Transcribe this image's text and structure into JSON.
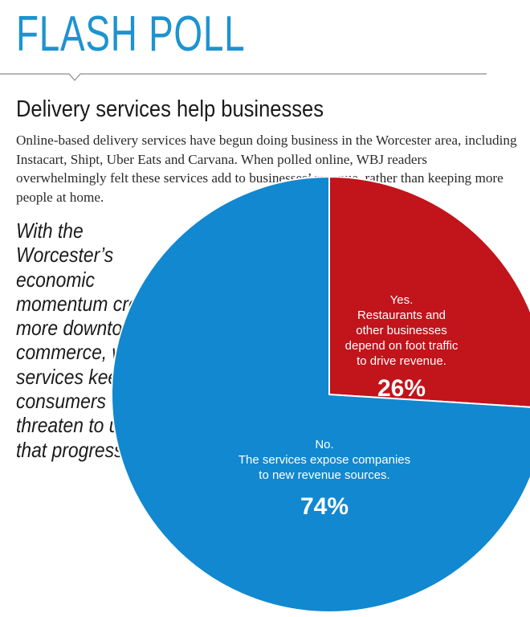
{
  "header": {
    "title": "FLASH POLL"
  },
  "headline": "Delivery services help businesses",
  "intro": "Online-based delivery services have begun doing business in the Worcester area, including Instacart, Shipt, Uber Eats and Carvana. When polled online, WBJ readers overwhelmingly felt these services add to businesses’ revenue, rather than keeping more people at home.",
  "question": "With the Worcester’s economic momentum creating more downtown commerce, will services keeping consumers home threaten to undo that progress?",
  "colors": {
    "accent": "#1d93d0",
    "yes": "#c1141b",
    "no": "#1188cf",
    "label": "#ffffff"
  },
  "chart_data": {
    "type": "pie",
    "slices": [
      {
        "name": "Yes",
        "value": 26,
        "pct_label": "26%",
        "lines": [
          "Yes.",
          "Restaurants and",
          "other businesses",
          "depend on foot traffic",
          "to drive revenue."
        ],
        "color": "#c1141b"
      },
      {
        "name": "No",
        "value": 74,
        "pct_label": "74%",
        "lines": [
          "No.",
          "The services expose companies",
          "to new revenue sources."
        ],
        "color": "#1188cf"
      }
    ]
  }
}
